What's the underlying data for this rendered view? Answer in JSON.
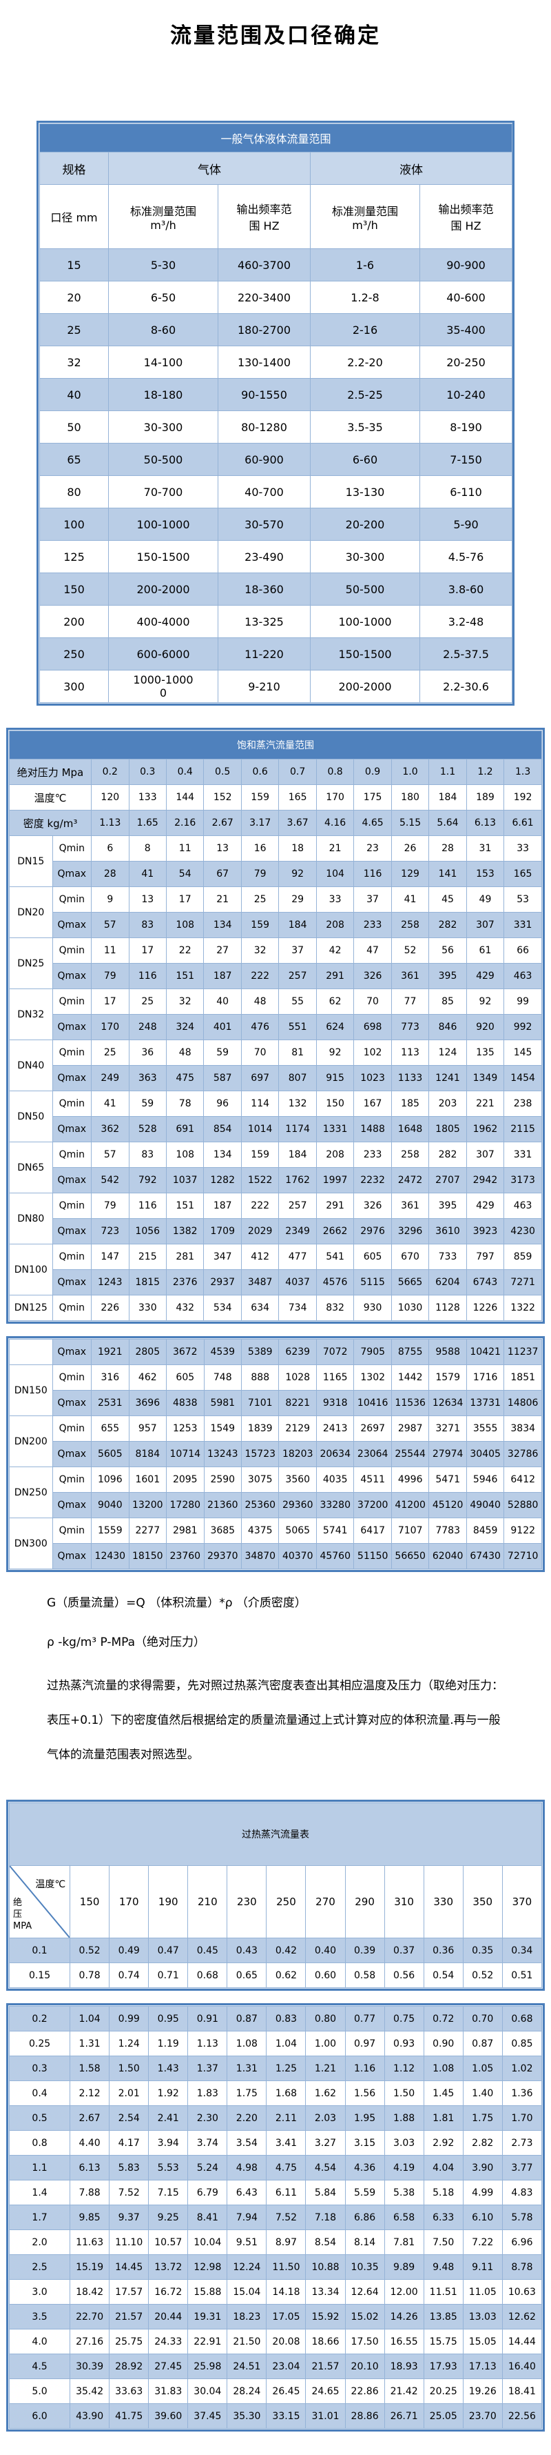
{
  "title": "流量范围及口径确定",
  "colors": {
    "accent": "#4f81bd",
    "frame_border": "#4a7ebb",
    "grid": "#95b3d7",
    "stripe": "#b9cde6",
    "subheader": "#c7d7eb",
    "band_text": "#ffffff"
  },
  "table1": {
    "title": "一般气体液体流量范围",
    "headers": {
      "spec": "规格",
      "gas": "气体",
      "liquid": "液体",
      "diameter": "口径 mm",
      "measure_range": "标准测量范围\nm³/h",
      "freq_range": "输出频率范\n围 HZ"
    },
    "rows": [
      [
        "15",
        "5-30",
        "460-3700",
        "1-6",
        "90-900"
      ],
      [
        "20",
        "6-50",
        "220-3400",
        "1.2-8",
        "40-600"
      ],
      [
        "25",
        "8-60",
        "180-2700",
        "2-16",
        "35-400"
      ],
      [
        "32",
        "14-100",
        "130-1400",
        "2.2-20",
        "20-250"
      ],
      [
        "40",
        "18-180",
        "90-1550",
        "2.5-25",
        "10-240"
      ],
      [
        "50",
        "30-300",
        "80-1280",
        "3.5-35",
        "8-190"
      ],
      [
        "65",
        "50-500",
        "60-900",
        "6-60",
        "7-150"
      ],
      [
        "80",
        "70-700",
        "40-700",
        "13-130",
        "6-110"
      ],
      [
        "100",
        "100-1000",
        "30-570",
        "20-200",
        "5-90"
      ],
      [
        "125",
        "150-1500",
        "23-490",
        "30-300",
        "4.5-76"
      ],
      [
        "150",
        "200-2000",
        "18-360",
        "50-500",
        "3.8-60"
      ],
      [
        "200",
        "400-4000",
        "13-325",
        "100-1000",
        "3.2-48"
      ],
      [
        "250",
        "600-6000",
        "11-220",
        "150-1500",
        "2.5-37.5"
      ],
      [
        "300",
        "1000-1000\n0",
        "9-210",
        "200-2000",
        "2.2-30.6"
      ]
    ]
  },
  "table2": {
    "title": "饱和蒸汽流量范围",
    "qmin_label": "Qmin",
    "qmax_label": "Qmax",
    "header_rows": [
      {
        "label": "绝对压力 Mpa",
        "values": [
          "0.2",
          "0.3",
          "0.4",
          "0.5",
          "0.6",
          "0.7",
          "0.8",
          "0.9",
          "1.0",
          "1.1",
          "1.2",
          "1.3"
        ]
      },
      {
        "label": "温度℃",
        "values": [
          "120",
          "133",
          "144",
          "152",
          "159",
          "165",
          "170",
          "175",
          "180",
          "184",
          "189",
          "192"
        ]
      },
      {
        "label": "密度 kg/m³",
        "values": [
          "1.13",
          "1.65",
          "2.16",
          "2.67",
          "3.17",
          "3.67",
          "4.16",
          "4.65",
          "5.15",
          "5.64",
          "6.13",
          "6.61"
        ]
      }
    ],
    "dn_groups_block1": [
      {
        "dn": "DN15",
        "qmin": [
          "6",
          "8",
          "11",
          "13",
          "16",
          "18",
          "21",
          "23",
          "26",
          "28",
          "31",
          "33"
        ],
        "qmax": [
          "28",
          "41",
          "54",
          "67",
          "79",
          "92",
          "104",
          "116",
          "129",
          "141",
          "153",
          "165"
        ]
      },
      {
        "dn": "DN20",
        "qmin": [
          "9",
          "13",
          "17",
          "21",
          "25",
          "29",
          "33",
          "37",
          "41",
          "45",
          "49",
          "53"
        ],
        "qmax": [
          "57",
          "83",
          "108",
          "134",
          "159",
          "184",
          "208",
          "233",
          "258",
          "282",
          "307",
          "331"
        ]
      },
      {
        "dn": "DN25",
        "qmin": [
          "11",
          "17",
          "22",
          "27",
          "32",
          "37",
          "42",
          "47",
          "52",
          "56",
          "61",
          "66"
        ],
        "qmax": [
          "79",
          "116",
          "151",
          "187",
          "222",
          "257",
          "291",
          "326",
          "361",
          "395",
          "429",
          "463"
        ]
      },
      {
        "dn": "DN32",
        "qmin": [
          "17",
          "25",
          "32",
          "40",
          "48",
          "55",
          "62",
          "70",
          "77",
          "85",
          "92",
          "99"
        ],
        "qmax": [
          "170",
          "248",
          "324",
          "401",
          "476",
          "551",
          "624",
          "698",
          "773",
          "846",
          "920",
          "992"
        ]
      },
      {
        "dn": "DN40",
        "qmin": [
          "25",
          "36",
          "48",
          "59",
          "70",
          "81",
          "92",
          "102",
          "113",
          "124",
          "135",
          "145"
        ],
        "qmax": [
          "249",
          "363",
          "475",
          "587",
          "697",
          "807",
          "915",
          "1023",
          "1133",
          "1241",
          "1349",
          "1454"
        ]
      },
      {
        "dn": "DN50",
        "qmin": [
          "41",
          "59",
          "78",
          "96",
          "114",
          "132",
          "150",
          "167",
          "185",
          "203",
          "221",
          "238"
        ],
        "qmax": [
          "362",
          "528",
          "691",
          "854",
          "1014",
          "1174",
          "1331",
          "1488",
          "1648",
          "1805",
          "1962",
          "2115"
        ]
      },
      {
        "dn": "DN65",
        "qmin": [
          "57",
          "83",
          "108",
          "134",
          "159",
          "184",
          "208",
          "233",
          "258",
          "282",
          "307",
          "331"
        ],
        "qmax": [
          "542",
          "792",
          "1037",
          "1282",
          "1522",
          "1762",
          "1997",
          "2232",
          "2472",
          "2707",
          "2942",
          "3173"
        ]
      },
      {
        "dn": "DN80",
        "qmin": [
          "79",
          "116",
          "151",
          "187",
          "222",
          "257",
          "291",
          "326",
          "361",
          "395",
          "429",
          "463"
        ],
        "qmax": [
          "723",
          "1056",
          "1382",
          "1709",
          "2029",
          "2349",
          "2662",
          "2976",
          "3296",
          "3610",
          "3923",
          "4230"
        ]
      },
      {
        "dn": "DN100",
        "qmin": [
          "147",
          "215",
          "281",
          "347",
          "412",
          "477",
          "541",
          "605",
          "670",
          "733",
          "797",
          "859"
        ],
        "qmax": [
          "1243",
          "1815",
          "2376",
          "2937",
          "3487",
          "4037",
          "4576",
          "5115",
          "5665",
          "6204",
          "6743",
          "7271"
        ]
      },
      {
        "dn": "DN125",
        "qmin": [
          "226",
          "330",
          "432",
          "534",
          "634",
          "734",
          "832",
          "930",
          "1030",
          "1128",
          "1226",
          "1322"
        ]
      }
    ],
    "dn125_qmax": [
      "1921",
      "2805",
      "3672",
      "4539",
      "5389",
      "6239",
      "7072",
      "7905",
      "8755",
      "9588",
      "10421",
      "11237"
    ],
    "dn_groups_block2": [
      {
        "dn": "DN150",
        "qmin": [
          "316",
          "462",
          "605",
          "748",
          "888",
          "1028",
          "1165",
          "1302",
          "1442",
          "1579",
          "1716",
          "1851"
        ],
        "qmax": [
          "2531",
          "3696",
          "4838",
          "5981",
          "7101",
          "8221",
          "9318",
          "10416",
          "11536",
          "12634",
          "13731",
          "14806"
        ]
      },
      {
        "dn": "DN200",
        "qmin": [
          "655",
          "957",
          "1253",
          "1549",
          "1839",
          "2129",
          "2413",
          "2697",
          "2987",
          "3271",
          "3555",
          "3834"
        ],
        "qmax": [
          "5605",
          "8184",
          "10714",
          "13243",
          "15723",
          "18203",
          "20634",
          "23064",
          "25544",
          "27974",
          "30405",
          "32786"
        ]
      },
      {
        "dn": "DN250",
        "qmin": [
          "1096",
          "1601",
          "2095",
          "2590",
          "3075",
          "3560",
          "4035",
          "4511",
          "4996",
          "5471",
          "5946",
          "6412"
        ],
        "qmax": [
          "9040",
          "13200",
          "17280",
          "21360",
          "25360",
          "29360",
          "33280",
          "37200",
          "41200",
          "45120",
          "49040",
          "52880"
        ]
      },
      {
        "dn": "DN300",
        "qmin": [
          "1559",
          "2277",
          "2981",
          "3685",
          "4375",
          "5065",
          "5741",
          "6417",
          "7107",
          "7783",
          "8459",
          "9122"
        ],
        "qmax": [
          "12430",
          "18150",
          "23760",
          "29370",
          "34870",
          "40370",
          "45760",
          "51150",
          "56650",
          "62040",
          "67430",
          "72710"
        ]
      }
    ]
  },
  "notes": [
    "G（质量流量）=Q （体积流量）*ρ （介质密度）",
    "ρ -kg/m³ P-MPa（绝对压力）",
    "过热蒸汽流量的求得需要，先对照过热蒸汽密度表查出其相应温度及压力（取绝对压力：表压+0.1）下的密度值然后根据给定的质量流量通过上式计算对应的体积流量.再与一般气体的流量范围表对照选型。"
  ],
  "table3": {
    "title": "过热蒸汽流量表",
    "corner": {
      "top_label": "温度℃",
      "bottom_label": "绝\n压\nMPA"
    },
    "temps": [
      "150",
      "170",
      "190",
      "210",
      "230",
      "250",
      "270",
      "290",
      "310",
      "330",
      "350",
      "370"
    ],
    "block1": [
      {
        "p": "0.1",
        "values": [
          "0.52",
          "0.49",
          "0.47",
          "0.45",
          "0.43",
          "0.42",
          "0.40",
          "0.39",
          "0.37",
          "0.36",
          "0.35",
          "0.34"
        ]
      },
      {
        "p": "0.15",
        "values": [
          "0.78",
          "0.74",
          "0.71",
          "0.68",
          "0.65",
          "0.62",
          "0.60",
          "0.58",
          "0.56",
          "0.54",
          "0.52",
          "0.51"
        ]
      }
    ],
    "block2": [
      {
        "p": "0.2",
        "values": [
          "1.04",
          "0.99",
          "0.95",
          "0.91",
          "0.87",
          "0.83",
          "0.80",
          "0.77",
          "0.75",
          "0.72",
          "0.70",
          "0.68"
        ]
      },
      {
        "p": "0.25",
        "values": [
          "1.31",
          "1.24",
          "1.19",
          "1.13",
          "1.08",
          "1.04",
          "1.00",
          "0.97",
          "0.93",
          "0.90",
          "0.87",
          "0.85"
        ]
      },
      {
        "p": "0.3",
        "values": [
          "1.58",
          "1.50",
          "1.43",
          "1.37",
          "1.31",
          "1.25",
          "1.21",
          "1.16",
          "1.12",
          "1.08",
          "1.05",
          "1.02"
        ]
      },
      {
        "p": "0.4",
        "values": [
          "2.12",
          "2.01",
          "1.92",
          "1.83",
          "1.75",
          "1.68",
          "1.62",
          "1.56",
          "1.50",
          "1.45",
          "1.40",
          "1.36"
        ]
      },
      {
        "p": "0.5",
        "values": [
          "2.67",
          "2.54",
          "2.41",
          "2.30",
          "2.20",
          "2.11",
          "2.03",
          "1.95",
          "1.88",
          "1.81",
          "1.75",
          "1.70"
        ]
      },
      {
        "p": "0.8",
        "values": [
          "4.40",
          "4.17",
          "3.94",
          "3.74",
          "3.54",
          "3.41",
          "3.27",
          "3.15",
          "3.03",
          "2.92",
          "2.82",
          "2.73"
        ]
      },
      {
        "p": "1.1",
        "values": [
          "6.13",
          "5.83",
          "5.53",
          "5.24",
          "4.98",
          "4.75",
          "4.54",
          "4.36",
          "4.19",
          "4.04",
          "3.90",
          "3.77"
        ]
      },
      {
        "p": "1.4",
        "values": [
          "7.88",
          "7.52",
          "7.15",
          "6.79",
          "6.43",
          "6.11",
          "5.84",
          "5.59",
          "5.38",
          "5.18",
          "4.99",
          "4.83"
        ]
      },
      {
        "p": "1.7",
        "values": [
          "9.85",
          "9.37",
          "9.25",
          "8.41",
          "7.94",
          "7.52",
          "7.18",
          "6.86",
          "6.58",
          "6.33",
          "6.10",
          "5.78"
        ]
      },
      {
        "p": "2.0",
        "values": [
          "11.63",
          "11.10",
          "10.57",
          "10.04",
          "9.51",
          "8.97",
          "8.54",
          "8.14",
          "7.81",
          "7.50",
          "7.22",
          "6.96"
        ]
      },
      {
        "p": "2.5",
        "values": [
          "15.19",
          "14.45",
          "13.72",
          "12.98",
          "12.24",
          "11.50",
          "10.88",
          "10.35",
          "9.89",
          "9.48",
          "9.11",
          "8.78"
        ]
      },
      {
        "p": "3.0",
        "values": [
          "18.42",
          "17.57",
          "16.72",
          "15.88",
          "15.04",
          "14.18",
          "13.34",
          "12.64",
          "12.00",
          "11.51",
          "11.05",
          "10.63"
        ]
      },
      {
        "p": "3.5",
        "values": [
          "22.70",
          "21.57",
          "20.44",
          "19.31",
          "18.23",
          "17.05",
          "15.92",
          "15.02",
          "14.26",
          "13.85",
          "13.03",
          "12.62"
        ]
      },
      {
        "p": "4.0",
        "values": [
          "27.16",
          "25.75",
          "24.33",
          "22.91",
          "21.50",
          "20.08",
          "18.66",
          "17.50",
          "16.55",
          "15.75",
          "15.05",
          "14.44"
        ]
      },
      {
        "p": "4.5",
        "values": [
          "30.39",
          "28.92",
          "27.45",
          "25.98",
          "24.51",
          "23.04",
          "21.57",
          "20.10",
          "18.93",
          "17.93",
          "17.13",
          "16.40"
        ]
      },
      {
        "p": "5.0",
        "values": [
          "35.42",
          "33.63",
          "31.83",
          "30.04",
          "28.24",
          "26.45",
          "24.65",
          "22.86",
          "21.42",
          "20.25",
          "19.26",
          "18.41"
        ]
      },
      {
        "p": "6.0",
        "values": [
          "43.90",
          "41.75",
          "39.60",
          "37.45",
          "35.30",
          "33.15",
          "31.01",
          "28.86",
          "26.71",
          "25.05",
          "23.70",
          "22.56"
        ]
      }
    ]
  }
}
